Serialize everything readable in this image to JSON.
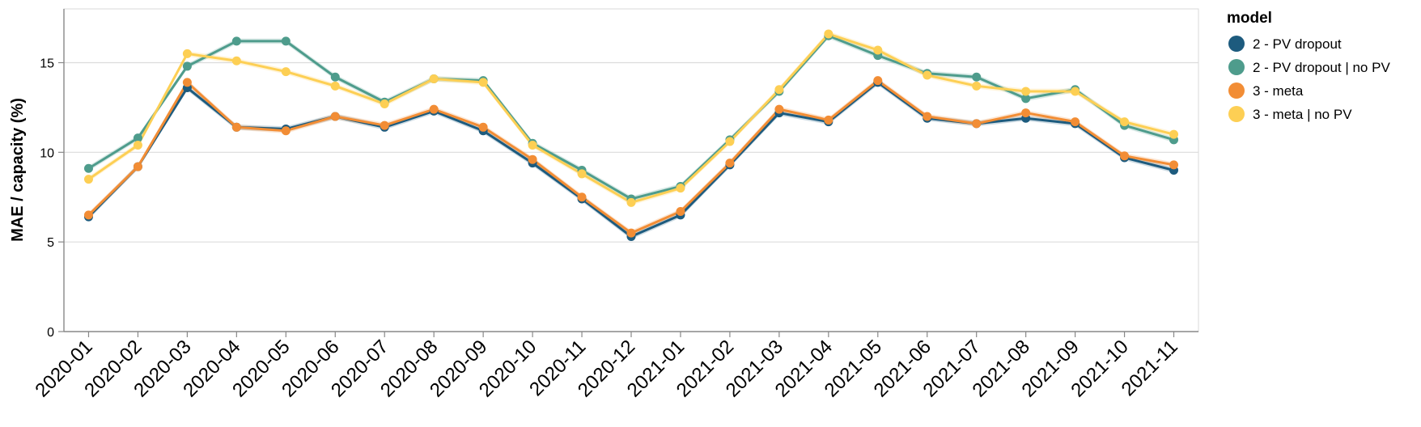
{
  "chart_data": {
    "type": "line",
    "ylabel": "MAE / capacity (%)",
    "xlabel": "",
    "ylim": [
      0,
      18
    ],
    "yticks": [
      0,
      5,
      10,
      15
    ],
    "grid": true,
    "legend": {
      "title": "model",
      "placement": "right"
    },
    "x": [
      "2020-01",
      "2020-02",
      "2020-03",
      "2020-04",
      "2020-05",
      "2020-06",
      "2020-07",
      "2020-08",
      "2020-09",
      "2020-10",
      "2020-11",
      "2020-12",
      "2021-01",
      "2021-02",
      "2021-03",
      "2021-04",
      "2021-05",
      "2021-06",
      "2021-07",
      "2021-08",
      "2021-09",
      "2021-10",
      "2021-11"
    ],
    "series": [
      {
        "name": "2 - PV dropout",
        "color": "#1d5b7e",
        "values": [
          6.4,
          9.2,
          13.6,
          11.4,
          11.3,
          12.0,
          11.4,
          12.3,
          11.2,
          9.4,
          7.4,
          5.3,
          6.5,
          9.3,
          12.2,
          11.7,
          13.9,
          11.9,
          11.6,
          11.9,
          11.6,
          9.7,
          9.0
        ]
      },
      {
        "name": "2 - PV dropout | no PV",
        "color": "#4e9c8c",
        "values": [
          9.1,
          10.8,
          14.8,
          16.2,
          16.2,
          14.2,
          12.8,
          14.1,
          14.0,
          10.5,
          9.0,
          7.4,
          8.1,
          10.7,
          13.4,
          16.5,
          15.4,
          14.4,
          14.2,
          13.0,
          13.5,
          11.5,
          10.7
        ]
      },
      {
        "name": "3 - meta",
        "color": "#f28d35",
        "values": [
          6.5,
          9.2,
          13.9,
          11.4,
          11.2,
          12.0,
          11.5,
          12.4,
          11.4,
          9.6,
          7.5,
          5.5,
          6.7,
          9.4,
          12.4,
          11.8,
          14.0,
          12.0,
          11.6,
          12.2,
          11.7,
          9.8,
          9.3
        ]
      },
      {
        "name": "3 - meta | no PV",
        "color": "#fdcf54",
        "values": [
          8.5,
          10.4,
          15.5,
          15.1,
          14.5,
          13.7,
          12.7,
          14.1,
          13.9,
          10.4,
          8.8,
          7.2,
          8.0,
          10.6,
          13.5,
          16.6,
          15.7,
          14.3,
          13.7,
          13.4,
          13.4,
          11.7,
          11.0
        ]
      }
    ]
  }
}
